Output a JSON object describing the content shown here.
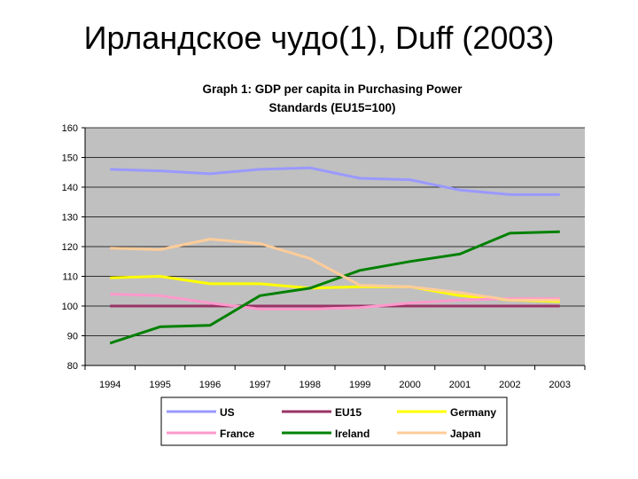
{
  "slide": {
    "title": "Ирландское чудо(1), Duff (2003)"
  },
  "chart_data": {
    "type": "line",
    "title_line1": "Graph 1: GDP per capita in Purchasing Power",
    "title_line2": "Standards (EU15=100)",
    "xlabel": "",
    "ylabel": "",
    "x": [
      "1994",
      "1995",
      "1996",
      "1997",
      "1998",
      "1999",
      "2000",
      "2001",
      "2002",
      "2003"
    ],
    "ylim": [
      80,
      160
    ],
    "yticks": [
      80,
      90,
      100,
      110,
      120,
      130,
      140,
      150,
      160
    ],
    "grid": "horizontal",
    "legend_position": "bottom",
    "series": [
      {
        "name": "US",
        "color": "#9999ff",
        "values": [
          146,
          145.5,
          144.5,
          146,
          146.5,
          143,
          142.5,
          139,
          137.5,
          137.5
        ]
      },
      {
        "name": "EU15",
        "color": "#993366",
        "values": [
          100,
          100,
          100,
          100,
          100,
          100,
          100,
          100,
          100,
          100
        ]
      },
      {
        "name": "Germany",
        "color": "#ffff00",
        "values": [
          109.5,
          110,
          107.5,
          107.5,
          106,
          106.5,
          106.5,
          103.5,
          102,
          101.5
        ]
      },
      {
        "name": "France",
        "color": "#ff99cc",
        "values": [
          104,
          103.5,
          101,
          99,
          99,
          99.5,
          101,
          102,
          102.5,
          102.5
        ]
      },
      {
        "name": "Ireland",
        "color": "#008000",
        "values": [
          87.5,
          93,
          93.5,
          103.5,
          106,
          112,
          115,
          117.5,
          124.5,
          125
        ]
      },
      {
        "name": "Japan",
        "color": "#ffcc99",
        "values": [
          119.5,
          119,
          122.5,
          121,
          116,
          107,
          106.5,
          104.5,
          102,
          102
        ]
      }
    ]
  }
}
